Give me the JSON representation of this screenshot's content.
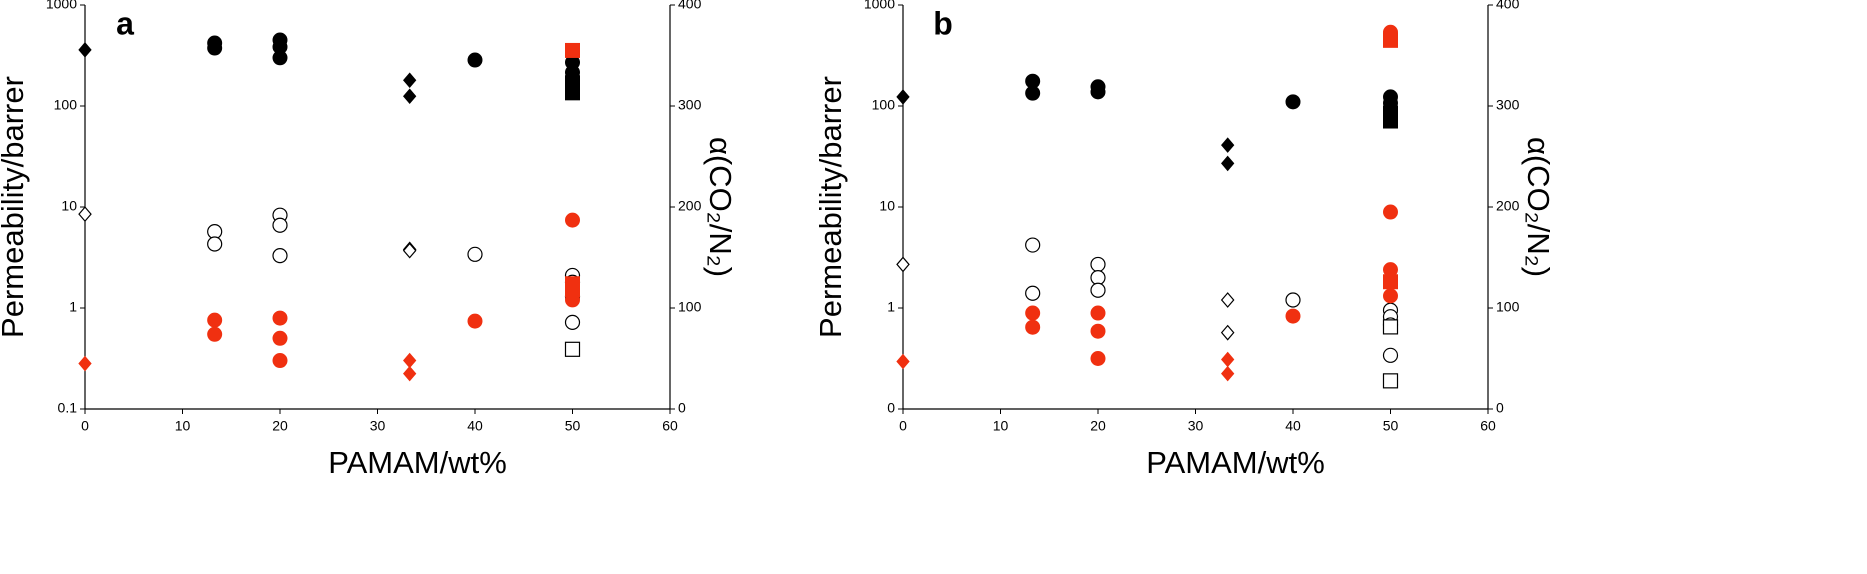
{
  "chart_data": [
    {
      "type": "scatter",
      "title": "a",
      "xlabel": "PAMAM/wt%",
      "ylabel": "Permeability/barrer",
      "y2label": "α(CO₂/N₂)",
      "xlim": [
        0,
        60
      ],
      "xticks": [
        0,
        10,
        20,
        30,
        40,
        50,
        60
      ],
      "ylim": [
        0.1,
        1000
      ],
      "yticks": [
        1000,
        100,
        10,
        1,
        0.1
      ],
      "log_y": true,
      "y2lim": [
        0,
        400
      ],
      "y2ticks": [
        0,
        100,
        200,
        300,
        400
      ],
      "series": [
        {
          "marker": "circle",
          "filled": true,
          "color": "#000000",
          "x": [
            13.3,
            13.3,
            20,
            20,
            20,
            40,
            50,
            50
          ],
          "values": [
            420,
            375,
            450,
            385,
            300,
            285,
            270,
            215
          ]
        },
        {
          "marker": "diamond",
          "filled": true,
          "color": "#000000",
          "x": [
            0,
            33.3,
            33.3
          ],
          "values": [
            360,
            180,
            125
          ]
        },
        {
          "marker": "square",
          "filled": true,
          "color": "#000000",
          "x": [
            50,
            50
          ],
          "values": [
            170,
            135
          ]
        },
        {
          "marker": "circle",
          "filled": false,
          "color": "#000000",
          "x": [
            13.3,
            13.3,
            20,
            20,
            20,
            40,
            50,
            50,
            50,
            50
          ],
          "values": [
            5.7,
            4.3,
            8.3,
            6.6,
            3.3,
            3.4,
            2.1,
            1.8,
            1.3,
            0.72
          ]
        },
        {
          "marker": "diamond",
          "filled": false,
          "color": "#000000",
          "x": [
            0,
            33.3,
            33.3
          ],
          "values": [
            8.5,
            3.8,
            3.7
          ]
        },
        {
          "marker": "square",
          "filled": false,
          "color": "#000000",
          "x": [
            50
          ],
          "values": [
            0.39
          ]
        },
        {
          "marker": "circle",
          "filled": true,
          "color": "#f03010",
          "axis": "y2",
          "x": [
            13.3,
            13.3,
            20,
            20,
            20,
            40,
            50,
            50
          ],
          "values": [
            88,
            74,
            90,
            70,
            48,
            87,
            187,
            108
          ]
        },
        {
          "marker": "diamond",
          "filled": true,
          "color": "#f03010",
          "axis": "y2",
          "x": [
            0,
            33.3,
            33.3
          ],
          "values": [
            45,
            48,
            35
          ]
        },
        {
          "marker": "square",
          "filled": true,
          "color": "#f03010",
          "axis": "y2",
          "x": [
            50,
            50,
            50
          ],
          "values": [
            355,
            124,
            118
          ]
        }
      ]
    },
    {
      "type": "scatter",
      "title": "b",
      "xlabel": "PAMAM/wt%",
      "ylabel": "Permeability/barrer",
      "y2label": "α(CO₂/N₂)",
      "xlim": [
        0,
        60
      ],
      "xticks": [
        0,
        10,
        20,
        30,
        40,
        50,
        60
      ],
      "ylim": [
        0.1,
        1000
      ],
      "yticks": [
        1000,
        100,
        10,
        1,
        {
          "value": 0.1,
          "label": "0"
        }
      ],
      "log_y": true,
      "y2lim": [
        0,
        400
      ],
      "y2ticks": [
        0,
        100,
        200,
        300,
        400
      ],
      "series": [
        {
          "marker": "circle",
          "filled": true,
          "color": "#000000",
          "x": [
            13.3,
            13.3,
            20,
            20,
            40,
            50,
            50,
            50
          ],
          "values": [
            176,
            134,
            155,
            138,
            110,
            123,
            107,
            91
          ]
        },
        {
          "marker": "diamond",
          "filled": true,
          "color": "#000000",
          "x": [
            0,
            33.3,
            33.3
          ],
          "values": [
            123,
            41,
            27
          ]
        },
        {
          "marker": "square",
          "filled": true,
          "color": "#000000",
          "x": [
            50,
            50
          ],
          "values": [
            85,
            71
          ]
        },
        {
          "marker": "circle",
          "filled": false,
          "color": "#000000",
          "x": [
            13.3,
            13.3,
            20,
            20,
            20,
            40,
            50,
            50,
            50,
            50
          ],
          "values": [
            4.2,
            1.4,
            2.7,
            2.0,
            1.5,
            1.2,
            0.95,
            0.82,
            0.68,
            0.34
          ]
        },
        {
          "marker": "diamond",
          "filled": false,
          "color": "#000000",
          "x": [
            0,
            33.3,
            33.3
          ],
          "values": [
            2.7,
            1.2,
            0.57
          ]
        },
        {
          "marker": "square",
          "filled": false,
          "color": "#000000",
          "x": [
            50,
            50
          ],
          "values": [
            0.65,
            0.19
          ]
        },
        {
          "marker": "circle",
          "filled": true,
          "color": "#f03010",
          "axis": "y2",
          "x": [
            13.3,
            13.3,
            20,
            20,
            20,
            40,
            50,
            50,
            50,
            50,
            50
          ],
          "values": [
            95,
            81,
            95,
            77,
            50,
            92,
            373,
            195,
            138,
            127,
            112
          ]
        },
        {
          "marker": "diamond",
          "filled": true,
          "color": "#f03010",
          "axis": "y2",
          "x": [
            0,
            33.3,
            33.3
          ],
          "values": [
            47,
            49,
            35
          ]
        },
        {
          "marker": "square",
          "filled": true,
          "color": "#f03010",
          "axis": "y2",
          "x": [
            50,
            50
          ],
          "values": [
            365,
            126
          ]
        }
      ]
    }
  ]
}
